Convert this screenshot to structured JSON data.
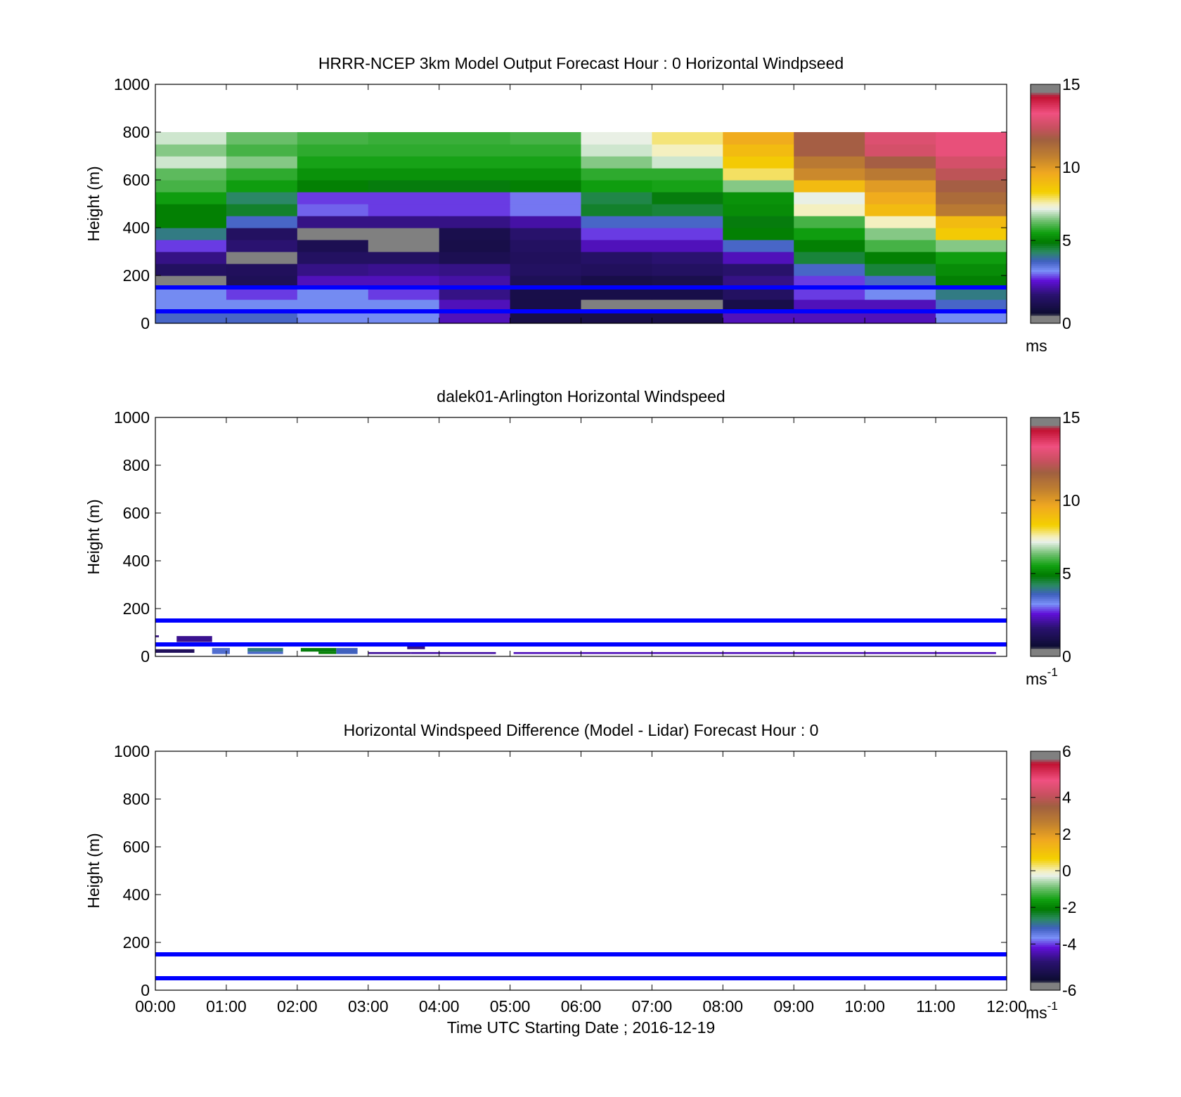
{
  "chart_data": [
    {
      "type": "heatmap",
      "title": "HRRR-NCEP 3km Model Output   Forecast Hour : 0 Horizontal Windpseed",
      "ylabel": "Height (m)",
      "ylim": [
        0,
        1000
      ],
      "yticks": [
        "0",
        "200",
        "400",
        "600",
        "800",
        "1000"
      ],
      "xlim_hours": [
        0,
        12
      ],
      "xticks": [],
      "reference_lines_m": [
        50,
        150
      ],
      "reference_line_color": "#0000ff",
      "colorbar": {
        "min": 0,
        "max": 15,
        "ticks": [
          "0",
          "5",
          "10",
          "15"
        ],
        "unit": "ms",
        "unit_sup": ""
      },
      "cell_height_m": 50,
      "rows_bottom_to_top_ms": [
        [
          3.5,
          3.5,
          3.0,
          3.0,
          2.0,
          0.5,
          0.5,
          0.5,
          2.0,
          2.0,
          2.0,
          3.0
        ],
        [
          3.0,
          3.0,
          3.0,
          3.0,
          2.0,
          0.5,
          -1.0,
          -1.0,
          0.5,
          2.0,
          2.0,
          3.5
        ],
        [
          3.0,
          2.5,
          3.0,
          2.5,
          1.5,
          0.5,
          0.5,
          0.5,
          1.0,
          2.5,
          3.0,
          4.0
        ],
        [
          -1.0,
          0.8,
          2.0,
          2.0,
          1.8,
          0.8,
          0.5,
          0.6,
          1.5,
          2.5,
          3.5,
          5.0
        ],
        [
          1.0,
          0.9,
          1.5,
          1.6,
          1.5,
          1.0,
          0.9,
          1.0,
          1.2,
          3.5,
          4.5,
          5.2
        ],
        [
          1.5,
          -1.0,
          1.0,
          1.0,
          0.7,
          0.9,
          1.1,
          1.3,
          2.0,
          4.5,
          5.0,
          5.5
        ],
        [
          2.5,
          1.3,
          0.7,
          -1.0,
          0.5,
          1.0,
          2.0,
          2.0,
          3.5,
          5.0,
          6.0,
          6.5
        ],
        [
          4.0,
          1.0,
          -1.0,
          -1.0,
          0.6,
          1.2,
          2.5,
          2.5,
          5.0,
          5.5,
          6.5,
          8.5
        ],
        [
          5.0,
          3.5,
          1.5,
          1.5,
          1.5,
          1.8,
          3.5,
          3.5,
          4.8,
          6.0,
          7.5,
          9.0
        ],
        [
          5.0,
          4.6,
          2.7,
          2.5,
          2.5,
          2.8,
          4.6,
          4.5,
          5.2,
          7.5,
          9.0,
          11.0
        ],
        [
          5.5,
          4.2,
          2.5,
          2.5,
          2.5,
          2.8,
          4.4,
          4.8,
          5.3,
          7.2,
          9.5,
          11.5
        ],
        [
          6.0,
          5.5,
          5.0,
          4.8,
          4.8,
          5.0,
          5.5,
          5.6,
          6.5,
          9.0,
          10.0,
          12.0
        ],
        [
          6.2,
          5.8,
          5.3,
          5.3,
          5.3,
          5.3,
          5.8,
          5.8,
          7.9,
          10.5,
          11.0,
          12.5
        ],
        [
          7.0,
          6.5,
          5.6,
          5.6,
          5.6,
          5.6,
          6.5,
          7.0,
          8.5,
          11.0,
          12.0,
          13.0
        ],
        [
          6.5,
          6.0,
          5.8,
          5.8,
          5.8,
          5.8,
          7.0,
          7.5,
          9.0,
          12.0,
          13.0,
          13.5
        ],
        [
          7.0,
          6.3,
          6.0,
          5.9,
          5.9,
          6.0,
          7.2,
          7.8,
          9.5,
          12.0,
          13.2,
          13.5
        ]
      ]
    },
    {
      "type": "heatmap",
      "title": "dalek01-Arlington  Horizontal Windspeed",
      "ylabel": "Height (m)",
      "ylim": [
        0,
        1000
      ],
      "yticks": [
        "0",
        "200",
        "400",
        "600",
        "800",
        "1000"
      ],
      "xlim_hours": [
        0,
        12
      ],
      "xticks": [],
      "reference_lines_m": [
        50,
        150
      ],
      "reference_line_color": "#0000ff",
      "colorbar": {
        "min": 0,
        "max": 15,
        "ticks": [
          "0",
          "5",
          "10",
          "15"
        ],
        "unit": "ms",
        "unit_sup": "-1"
      },
      "segments": [
        {
          "t0": 0.0,
          "t1": 0.55,
          "h0": 15,
          "h1": 30,
          "v": 0.9
        },
        {
          "t0": 0.3,
          "t1": 0.8,
          "h0": 60,
          "h1": 85,
          "v": 1.6
        },
        {
          "t0": 0.0,
          "t1": 0.05,
          "h0": 80,
          "h1": 88,
          "v": 1.5
        },
        {
          "t0": 0.8,
          "t1": 1.05,
          "h0": 10,
          "h1": 35,
          "v": 3.4
        },
        {
          "t0": 1.3,
          "t1": 1.8,
          "h0": 10,
          "h1": 20,
          "v": 3.5
        },
        {
          "t0": 1.3,
          "t1": 1.8,
          "h0": 20,
          "h1": 35,
          "v": 4.0
        },
        {
          "t0": 2.05,
          "t1": 2.55,
          "h0": 20,
          "h1": 35,
          "v": 4.8
        },
        {
          "t0": 2.3,
          "t1": 2.55,
          "h0": 10,
          "h1": 20,
          "v": 5.0
        },
        {
          "t0": 2.55,
          "t1": 2.85,
          "h0": 10,
          "h1": 35,
          "v": 3.6
        },
        {
          "t0": 3.0,
          "t1": 3.6,
          "h0": 10,
          "h1": 18,
          "v": 1.7
        },
        {
          "t0": 3.55,
          "t1": 3.8,
          "h0": 30,
          "h1": 42,
          "v": 1.5
        },
        {
          "t0": 3.6,
          "t1": 4.8,
          "h0": 10,
          "h1": 18,
          "v": 1.8
        },
        {
          "t0": 5.05,
          "t1": 11.85,
          "h0": 10,
          "h1": 18,
          "v": 2.0
        }
      ]
    },
    {
      "type": "heatmap",
      "title": "Horizontal Windspeed Difference (Model - Lidar) Forecast Hour : 0",
      "xlabel": "Time UTC  Starting Date ; 2016-12-19",
      "ylabel": "Height (m)",
      "ylim": [
        0,
        1000
      ],
      "yticks": [
        "0",
        "200",
        "400",
        "600",
        "800",
        "1000"
      ],
      "xlim_hours": [
        0,
        12
      ],
      "xticks": [
        "00:00",
        "01:00",
        "02:00",
        "03:00",
        "04:00",
        "05:00",
        "06:00",
        "07:00",
        "08:00",
        "09:00",
        "10:00",
        "11:00",
        "12:00"
      ],
      "reference_lines_m": [
        50,
        150
      ],
      "reference_line_color": "#0000ff",
      "colorbar": {
        "min": -6,
        "max": 6,
        "ticks": [
          "-6",
          "-4",
          "-2",
          "0",
          "2",
          "4",
          "6"
        ],
        "unit": "ms",
        "unit_sup": "-1"
      },
      "segments": []
    }
  ]
}
